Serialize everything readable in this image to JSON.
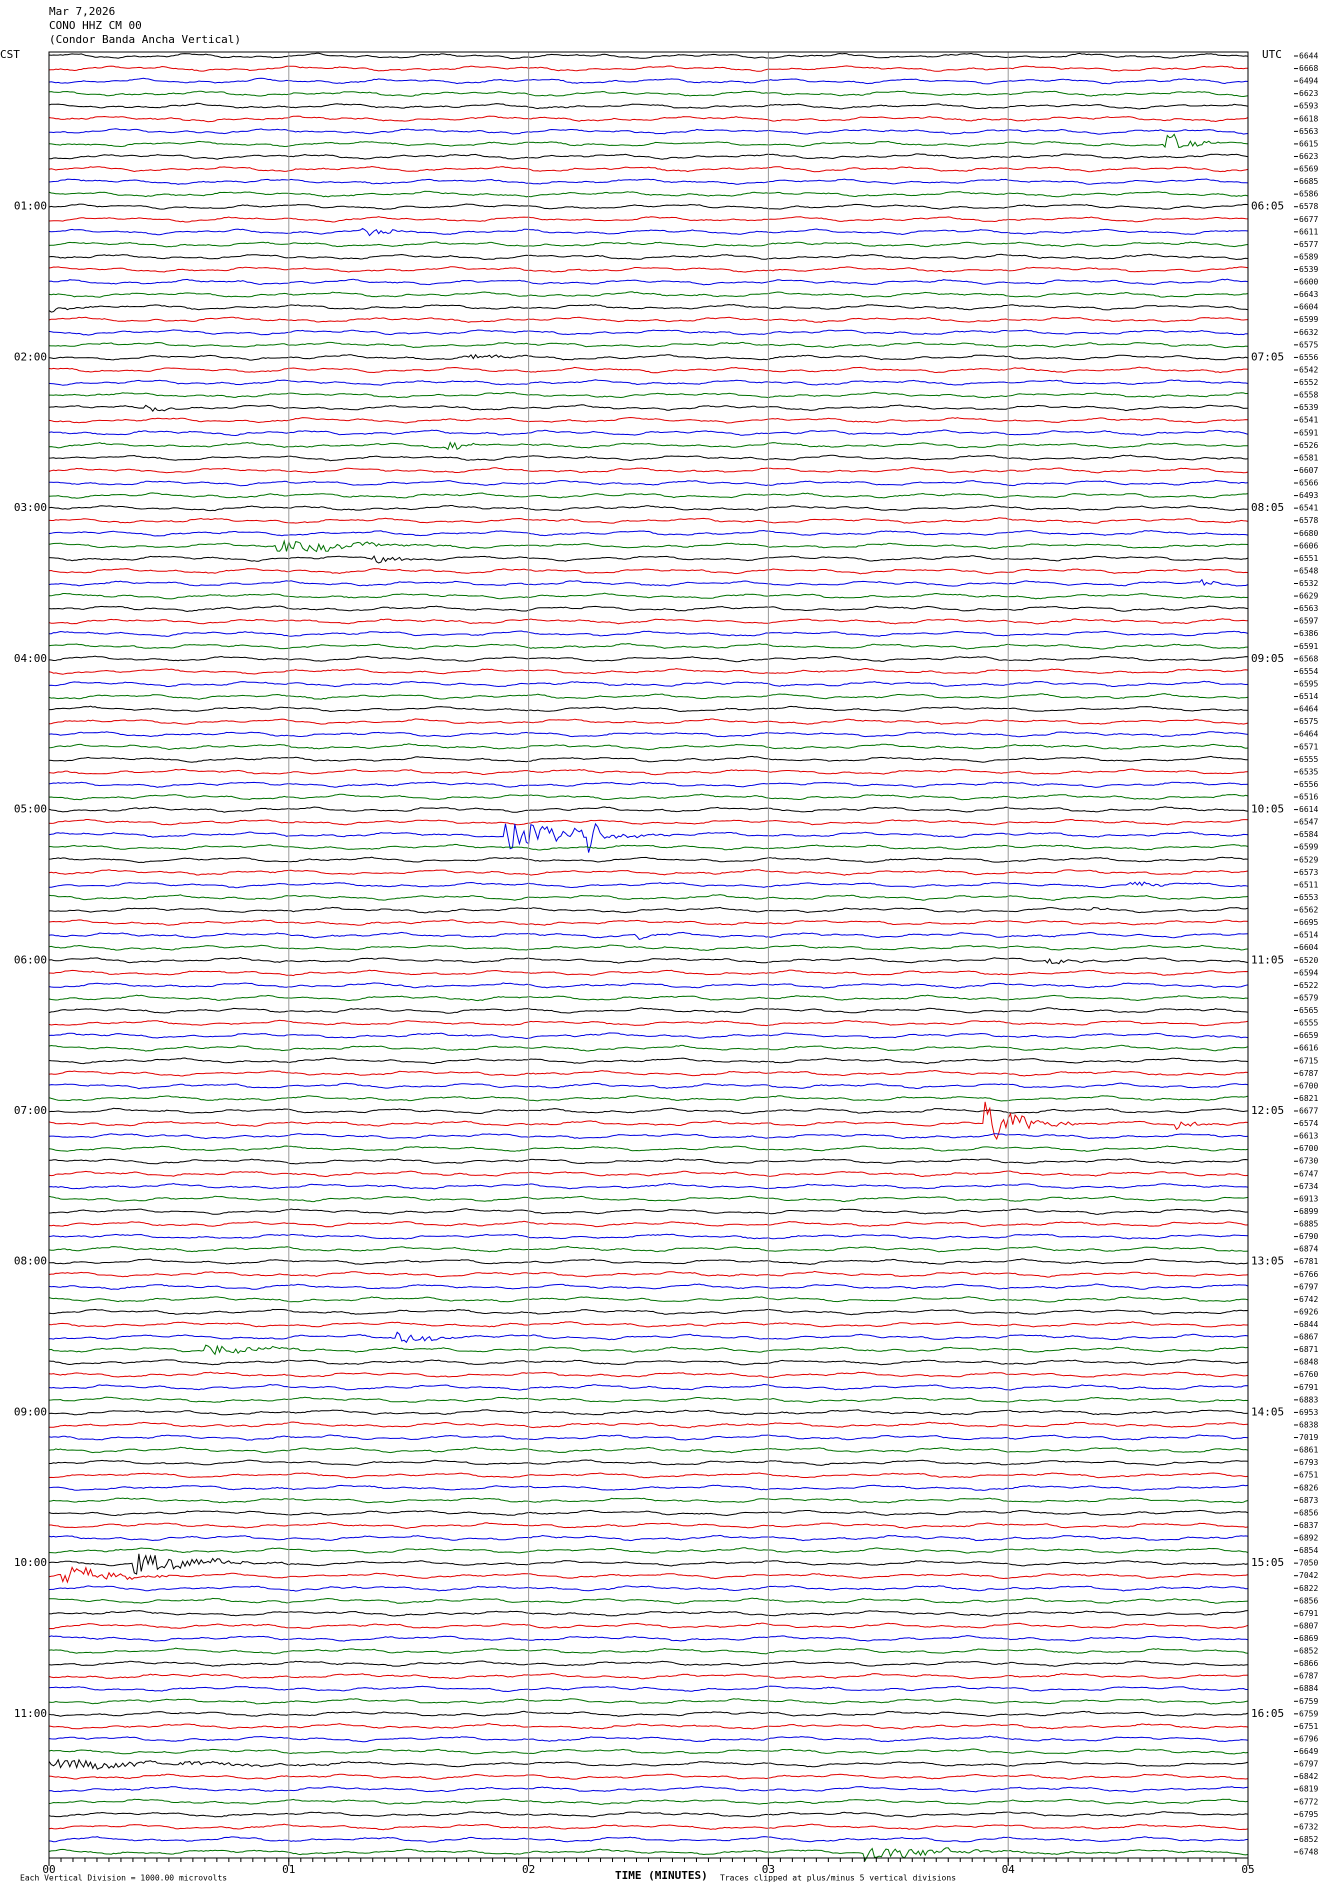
{
  "chart_data": {
    "type": "helicorder",
    "title_lines": [
      "Mar 7,2026",
      "CONO HHZ CM 00",
      "(Condor Banda Ancha Vertical)"
    ],
    "left_axis": {
      "title": "CST",
      "labels": [
        "01:00",
        "02:00",
        "03:00",
        "04:00",
        "05:00",
        "06:00",
        "07:00",
        "08:00",
        "09:00",
        "10:00",
        "11:00"
      ]
    },
    "right_axis": {
      "title": "UTC",
      "labels": [
        "06:05",
        "07:05",
        "08:05",
        "09:05",
        "10:05",
        "11:05",
        "12:05",
        "13:05",
        "14:05",
        "15:05",
        "16:05"
      ]
    },
    "trace_colors": [
      "#000000",
      "#e00000",
      "#0000e0",
      "#007000"
    ],
    "trace_labels": [
      6644,
      6668,
      6494,
      6623,
      6593,
      6618,
      6563,
      6615,
      6623,
      6569,
      6685,
      6586,
      6578,
      6677,
      6611,
      6577,
      6589,
      6539,
      6600,
      6643,
      6604,
      6599,
      6632,
      6575,
      6556,
      6542,
      6552,
      6558,
      6539,
      6541,
      6591,
      6526,
      6581,
      6607,
      6566,
      6493,
      6541,
      6578,
      6680,
      6606,
      6551,
      6548,
      6532,
      6629,
      6563,
      6597,
      6386,
      6591,
      6568,
      6554,
      6595,
      6514,
      6464,
      6575,
      6464,
      6571,
      6555,
      6535,
      6556,
      6516,
      6614,
      6547,
      6584,
      6599,
      6529,
      6573,
      6511,
      6553,
      6562,
      6695,
      6514,
      6604,
      6520,
      6594,
      6522,
      6579,
      6565,
      6555,
      6659,
      6616,
      6715,
      6787,
      6700,
      6821,
      6677,
      6574,
      6613,
      6700,
      6730,
      6747,
      6734,
      6913,
      6899,
      6885,
      6790,
      6874,
      6781,
      6766,
      6797,
      6742,
      6926,
      6844,
      6867,
      6871,
      6848,
      6760,
      6791,
      6883,
      6953,
      6838,
      7019,
      6861,
      6793,
      6751,
      6826,
      6873,
      6856,
      6837,
      6892,
      6854,
      7050,
      7042,
      6822,
      6856,
      6791,
      6807,
      6869,
      6852,
      6866,
      6787,
      6884,
      6759,
      6759,
      6751,
      6796,
      6649,
      6797,
      6842,
      6819,
      6772,
      6795,
      6732,
      6852,
      6748
    ],
    "xlim": [
      0,
      5
    ],
    "xticks": [
      {
        "value": 0,
        "label": "00"
      },
      {
        "value": 1,
        "label": "01"
      },
      {
        "value": 2,
        "label": "02"
      },
      {
        "value": 3,
        "label": "03"
      },
      {
        "value": 4,
        "label": "04"
      },
      {
        "value": 5,
        "label": "05"
      }
    ],
    "xlabel": "TIME (MINUTES)",
    "footnote_left": "Each Vertical Division = 1000.00 microvolts",
    "footnote_right": "Traces clipped at plus/minus 5 vertical divisions",
    "grid": true
  }
}
